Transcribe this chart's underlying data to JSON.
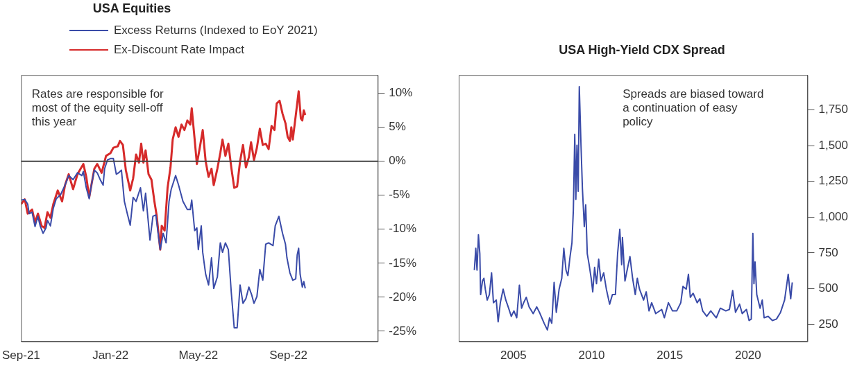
{
  "chart_data": [
    {
      "type": "line",
      "title": "USA Equities",
      "legend": "top",
      "line_style": "solid",
      "xlim": [
        "2021-09-01",
        "2023-01-01"
      ],
      "xticks": [
        {
          "value": "2021-09-01",
          "label": "Sep-21"
        },
        {
          "value": "2022-01-01",
          "label": "Jan-22"
        },
        {
          "value": "2022-05-01",
          "label": "May-22"
        },
        {
          "value": "2022-09-01",
          "label": "Sep-22"
        }
      ],
      "ylim": [
        -26.5,
        12.7
      ],
      "yticks": [
        {
          "value": -25,
          "label": "-25%"
        },
        {
          "value": -20,
          "label": "-20%"
        },
        {
          "value": -15,
          "label": "-15%"
        },
        {
          "value": -10,
          "label": "-10%"
        },
        {
          "value": -5,
          "label": "-5%"
        },
        {
          "value": 0,
          "label": "0%"
        },
        {
          "value": 5,
          "label": "5%"
        },
        {
          "value": 10,
          "label": "10%"
        }
      ],
      "ref_lines": [
        {
          "axis": "y",
          "value": 0,
          "color": "#444444"
        }
      ],
      "annotations": [
        "Rates are responsible for most of the equity sell-off this year"
      ],
      "series": [
        {
          "name": "Excess Returns (Indexed to EoY 2021)",
          "color": "#3a4ba8",
          "x": [
            "2021-09-01",
            "2021-09-06",
            "2021-09-10",
            "2021-09-12",
            "2021-09-16",
            "2021-09-20",
            "2021-09-24",
            "2021-09-27",
            "2021-10-01",
            "2021-10-05",
            "2021-10-07",
            "2021-10-11",
            "2021-10-15",
            "2021-10-19",
            "2021-10-25",
            "2021-10-31",
            "2021-11-05",
            "2021-11-11",
            "2021-11-17",
            "2021-11-23",
            "2021-11-25",
            "2021-11-29",
            "2021-12-03",
            "2021-12-06",
            "2021-12-10",
            "2021-12-14",
            "2021-12-18",
            "2021-12-22",
            "2021-12-24",
            "2021-12-28",
            "2022-01-01",
            "2022-01-05",
            "2022-01-09",
            "2022-01-12",
            "2022-01-16",
            "2022-01-20",
            "2022-01-24",
            "2022-01-28",
            "2022-02-01",
            "2022-02-05",
            "2022-02-11",
            "2022-02-15",
            "2022-02-18",
            "2022-02-24",
            "2022-02-28",
            "2022-03-04",
            "2022-03-08",
            "2022-03-10",
            "2022-03-14",
            "2022-03-18",
            "2022-03-22",
            "2022-03-25",
            "2022-03-31",
            "2022-04-04",
            "2022-04-10",
            "2022-04-16",
            "2022-04-20",
            "2022-04-22",
            "2022-04-26",
            "2022-04-29",
            "2022-05-01",
            "2022-05-05",
            "2022-05-07",
            "2022-05-11",
            "2022-05-15",
            "2022-05-19",
            "2022-05-22",
            "2022-05-27",
            "2022-05-31",
            "2022-06-03",
            "2022-06-07",
            "2022-06-11",
            "2022-06-15",
            "2022-06-19",
            "2022-06-23",
            "2022-06-27",
            "2022-07-01",
            "2022-07-05",
            "2022-07-09",
            "2022-07-13",
            "2022-07-16",
            "2022-07-20",
            "2022-07-24",
            "2022-07-28",
            "2022-08-01",
            "2022-08-05",
            "2022-08-11",
            "2022-08-14",
            "2022-08-19",
            "2022-08-24",
            "2022-08-28",
            "2022-08-30",
            "2022-09-03",
            "2022-09-07",
            "2022-09-11",
            "2022-09-13",
            "2022-09-15",
            "2022-09-17",
            "2022-09-20",
            "2022-09-22",
            "2022-09-24"
          ],
          "values": [
            -5.7,
            -5.6,
            -6.3,
            -7.7,
            -7.5,
            -9.6,
            -8.1,
            -9.5,
            -10.6,
            -9.8,
            -8.7,
            -9.5,
            -6.9,
            -5.5,
            -4.9,
            -3.5,
            -2.1,
            -2.7,
            -1.7,
            -2.1,
            -1.5,
            -3.9,
            -5.5,
            -3.5,
            -1.3,
            -1.7,
            -2.7,
            -3.5,
            -1.1,
            0.2,
            0.4,
            0.4,
            -1.9,
            -1.7,
            -1.3,
            -5.9,
            -7.7,
            -9.4,
            -5.3,
            -5.9,
            -3.9,
            -7.3,
            -4.7,
            -11.6,
            -8.1,
            -7.9,
            -11.4,
            -13,
            -10.6,
            -12,
            -5.9,
            -4.1,
            -2.1,
            -3.5,
            -5.9,
            -7.1,
            -7.1,
            -5.7,
            -10.2,
            -9.8,
            -13,
            -9.5,
            -13.4,
            -16.6,
            -18.2,
            -14.2,
            -18.7,
            -17,
            -12,
            -13.4,
            -12,
            -13,
            -19.3,
            -24.5,
            -24.5,
            -18.2,
            -20.9,
            -20.2,
            -18.5,
            -19.7,
            -20.9,
            -19.9,
            -15.9,
            -17.5,
            -12.2,
            -12,
            -12.4,
            -9.5,
            -8.1,
            -10.6,
            -12.2,
            -14.2,
            -16.4,
            -17.5,
            -17.3,
            -13.8,
            -12.8,
            -16.6,
            -18.5,
            -17.7,
            -18.7
          ]
        },
        {
          "name": "Ex-Discount Rate Impact",
          "color": "#d62a2a",
          "x": [
            "2021-09-01",
            "2021-09-06",
            "2021-09-10",
            "2021-09-16",
            "2021-09-20",
            "2021-09-24",
            "2021-09-29",
            "2021-10-03",
            "2021-10-07",
            "2021-10-11",
            "2021-10-15",
            "2021-10-21",
            "2021-10-27",
            "2021-10-31",
            "2021-11-05",
            "2021-11-11",
            "2021-11-17",
            "2021-11-25",
            "2021-11-29",
            "2021-12-03",
            "2021-12-06",
            "2021-12-10",
            "2021-12-14",
            "2021-12-20",
            "2021-12-26",
            "2022-01-01",
            "2022-01-05",
            "2022-01-11",
            "2022-01-14",
            "2022-01-18",
            "2022-01-22",
            "2022-01-28",
            "2022-02-01",
            "2022-02-05",
            "2022-02-09",
            "2022-02-12",
            "2022-02-15",
            "2022-02-18",
            "2022-02-22",
            "2022-02-26",
            "2022-03-02",
            "2022-03-05",
            "2022-03-10",
            "2022-03-12",
            "2022-03-16",
            "2022-03-20",
            "2022-03-24",
            "2022-03-27",
            "2022-03-31",
            "2022-04-04",
            "2022-04-08",
            "2022-04-12",
            "2022-04-16",
            "2022-04-20",
            "2022-04-22",
            "2022-04-26",
            "2022-04-29",
            "2022-05-03",
            "2022-05-07",
            "2022-05-11",
            "2022-05-15",
            "2022-05-19",
            "2022-05-22",
            "2022-05-27",
            "2022-05-31",
            "2022-06-03",
            "2022-06-07",
            "2022-06-11",
            "2022-06-15",
            "2022-06-19",
            "2022-06-23",
            "2022-06-27",
            "2022-07-01",
            "2022-07-05",
            "2022-07-09",
            "2022-07-12",
            "2022-07-16",
            "2022-07-20",
            "2022-07-24",
            "2022-07-28",
            "2022-08-01",
            "2022-08-05",
            "2022-08-09",
            "2022-08-13",
            "2022-08-16",
            "2022-08-20",
            "2022-08-24",
            "2022-08-28",
            "2022-08-31",
            "2022-09-03",
            "2022-09-05",
            "2022-09-07",
            "2022-09-11",
            "2022-09-15",
            "2022-09-18",
            "2022-09-20",
            "2022-09-22",
            "2022-09-24"
          ],
          "values": [
            -6.3,
            -5.6,
            -7.7,
            -7.1,
            -9,
            -7.7,
            -9.5,
            -9.8,
            -7.5,
            -8.3,
            -6.3,
            -4.3,
            -5.9,
            -3.5,
            -1.9,
            -4.1,
            -1.9,
            -0.4,
            -2.3,
            -5.3,
            -3.5,
            -1.1,
            -0.4,
            -1.7,
            0.8,
            1.2,
            2,
            2.2,
            3,
            2.4,
            -1.3,
            -4.3,
            -2.5,
            1,
            -0.2,
            2.6,
            -0.2,
            1.6,
            -1.9,
            -2.7,
            -5.9,
            -7.9,
            -13,
            -9.5,
            -10.2,
            -3.9,
            -0.9,
            3.2,
            5,
            3.6,
            5.4,
            4.6,
            6,
            5.4,
            7.8,
            3.2,
            -0.4,
            2,
            4.6,
            0,
            -2.3,
            -1.1,
            -3.5,
            -1.1,
            1.2,
            3.2,
            0.8,
            2.6,
            -0.9,
            -3.9,
            -3.7,
            0,
            2.4,
            -0.9,
            0.6,
            2.8,
            0.2,
            2,
            4.8,
            2.4,
            2.6,
            1.8,
            5.2,
            4.6,
            8.5,
            8.9,
            7,
            5.6,
            3.6,
            3,
            5,
            3.2,
            6.7,
            10.3,
            6.3,
            6,
            7.5,
            6.8
          ]
        }
      ]
    },
    {
      "type": "line",
      "title": "USA High-Yield CDX Spread",
      "line_style": "solid",
      "xlim": [
        2001.5,
        2023.8
      ],
      "xticks": [
        2005,
        2010,
        2015,
        2020
      ],
      "ylim": [
        132,
        1993
      ],
      "yticks": [
        250,
        500,
        750,
        {
          "value": 1000,
          "label": "1,000"
        },
        {
          "value": 1250,
          "label": "1,250"
        },
        {
          "value": 1500,
          "label": "1,500"
        },
        {
          "value": 1750,
          "label": "1,750"
        }
      ],
      "annotations": [
        "Spreads are biased toward a continuation of easy policy"
      ],
      "x": [
        2002.5,
        2002.59,
        2002.67,
        2002.76,
        2002.85,
        2002.9,
        2003.02,
        2003.11,
        2003.2,
        2003.32,
        2003.46,
        2003.6,
        2003.72,
        2003.9,
        2004.02,
        2004.16,
        2004.34,
        2004.51,
        2004.69,
        2004.86,
        2005.03,
        2005.21,
        2005.38,
        2005.52,
        2005.65,
        2005.82,
        2006,
        2006.26,
        2006.49,
        2006.7,
        2006.96,
        2007.17,
        2007.31,
        2007.45,
        2007.6,
        2007.74,
        2007.92,
        2008.09,
        2008.22,
        2008.36,
        2008.48,
        2008.62,
        2008.74,
        2008.83,
        2008.92,
        2008.99,
        2009.06,
        2009.14,
        2009.21,
        2009.32,
        2009.41,
        2009.53,
        2009.62,
        2009.72,
        2009.84,
        2009.97,
        2010.07,
        2010.19,
        2010.31,
        2010.45,
        2010.59,
        2010.77,
        2010.94,
        2011.15,
        2011.33,
        2011.52,
        2011.66,
        2011.8,
        2011.92,
        2011.97,
        2012.13,
        2012.27,
        2012.45,
        2012.62,
        2012.79,
        2012.92,
        2013.06,
        2013.32,
        2013.49,
        2013.67,
        2013.84,
        2014.1,
        2014.48,
        2014.65,
        2014.91,
        2015.17,
        2015.44,
        2015.7,
        2015.84,
        2016.05,
        2016.19,
        2016.31,
        2016.49,
        2016.75,
        2016.92,
        2017.1,
        2017.36,
        2017.62,
        2017.97,
        2018.23,
        2018.58,
        2018.81,
        2019.02,
        2019.2,
        2019.46,
        2019.63,
        2019.9,
        2020.07,
        2020.21,
        2020.31,
        2020.38,
        2020.45,
        2020.56,
        2020.77,
        2020.91,
        2021.03,
        2021.29,
        2021.56,
        2021.82,
        2022.08,
        2022.34,
        2022.57,
        2022.73,
        2022.83
      ],
      "series": [
        {
          "color": "#3a4ba8",
          "values": [
            630,
            782,
            630,
            877,
            744,
            459,
            554,
            573,
            497,
            421,
            459,
            611,
            402,
            421,
            269,
            402,
            497,
            421,
            364,
            307,
            345,
            297,
            525,
            364,
            402,
            440,
            373,
            326,
            373,
            326,
            259,
            212,
            297,
            259,
            544,
            335,
            497,
            573,
            782,
            630,
            592,
            725,
            820,
            1048,
            1579,
            1124,
            1503,
            1181,
            1912,
            1503,
            1200,
            934,
            1086,
            744,
            668,
            573,
            478,
            649,
            535,
            706,
            554,
            611,
            497,
            392,
            459,
            459,
            744,
            915,
            668,
            858,
            554,
            630,
            725,
            573,
            459,
            573,
            497,
            421,
            478,
            345,
            402,
            326,
            355,
            297,
            402,
            345,
            345,
            402,
            516,
            497,
            601,
            440,
            468,
            402,
            430,
            345,
            307,
            345,
            297,
            364,
            345,
            355,
            487,
            335,
            392,
            326,
            355,
            278,
            288,
            886,
            535,
            687,
            459,
            364,
            421,
            297,
            307,
            278,
            288,
            335,
            421,
            601,
            430,
            544
          ]
        }
      ]
    }
  ]
}
